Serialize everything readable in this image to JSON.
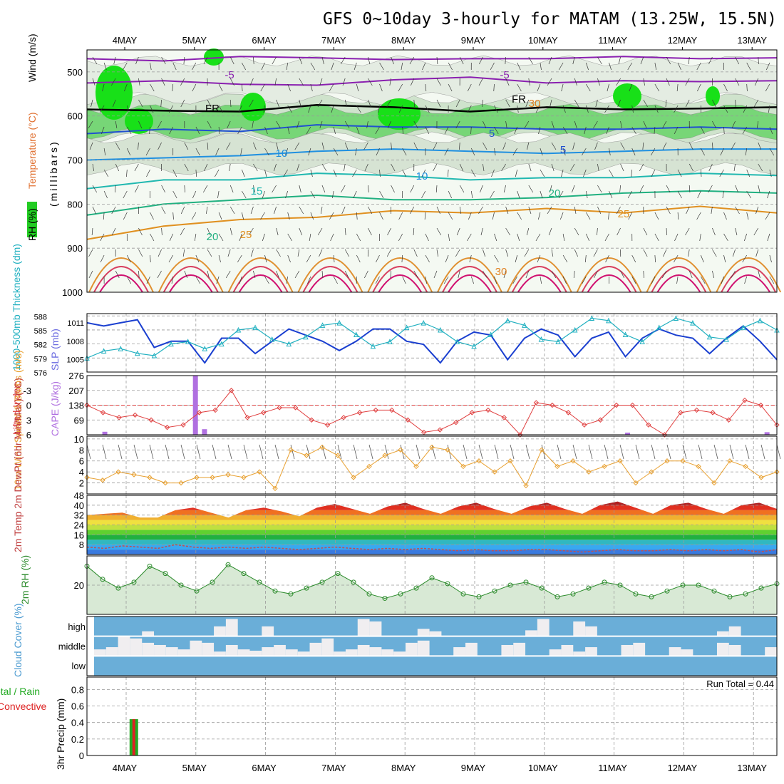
{
  "title": "GFS 0~10day 3-hourly for MATAM (13.25W, 15.5N)",
  "dates": [
    "4MAY",
    "5MAY",
    "6MAY",
    "7MAY",
    "8MAY",
    "9MAY",
    "10MAY",
    "11MAY",
    "12MAY",
    "13MAY"
  ],
  "run_total": "Run Total = 0.44",
  "colors": {
    "temp": "#d04040",
    "wind": "#000000",
    "rh_green": "#22cc22",
    "slp": "#1a3fd0",
    "thick": "#20b0c0",
    "li": "#e04040",
    "cape": "#b070e0",
    "wind10": "#e8a030",
    "rh2m": "#2a8a2a",
    "cloud": "#6aaed8",
    "precip_total": "#22aa22",
    "precip_conv": "#dd2222"
  },
  "chart_data": [
    {
      "type": "heatmap",
      "panel": "upper_air",
      "ylabel_parts": {
        "rh": "RH (%)",
        "temp": "Temperature (°C)",
        "wind": "Wind (m/s)",
        "pressure": "(millibars)"
      },
      "y_ticks": [
        "500",
        "600",
        "700",
        "800",
        "900",
        "1000"
      ],
      "ylim": [
        1000,
        450
      ],
      "contour_labels": [
        "-5",
        "-5",
        "FR",
        "FR",
        "5",
        "5",
        "10",
        "10",
        "15",
        "20",
        "20",
        "25",
        "25",
        "30",
        "30"
      ],
      "isotherms": [
        {
          "label": "-5",
          "p": [
            470,
            475,
            465,
            468,
            472,
            470,
            470,
            465,
            470,
            468
          ]
        },
        {
          "label": "-5",
          "p": [
            525,
            520,
            528,
            530,
            518,
            512,
            525,
            520,
            522,
            520
          ]
        },
        {
          "label": "FR",
          "p": [
            585,
            588,
            590,
            575,
            580,
            590,
            580,
            585,
            583,
            580
          ]
        },
        {
          "label": "5",
          "p": [
            640,
            630,
            635,
            620,
            625,
            625,
            630,
            630,
            625,
            630
          ]
        },
        {
          "label": "10",
          "p": [
            700,
            695,
            690,
            680,
            675,
            680,
            685,
            680,
            675,
            675
          ]
        },
        {
          "label": "15",
          "p": [
            765,
            745,
            745,
            730,
            735,
            745,
            740,
            740,
            730,
            735
          ]
        },
        {
          "label": "20",
          "p": [
            825,
            800,
            790,
            780,
            790,
            790,
            785,
            775,
            770,
            775
          ]
        },
        {
          "label": "25",
          "p": [
            880,
            850,
            835,
            830,
            815,
            820,
            810,
            820,
            805,
            820
          ]
        }
      ]
    },
    {
      "type": "line",
      "panel": "slp_thickness",
      "ylabel_left": "1000-500mb Thickness (dm)",
      "ylabel_right": "SLP (mb)",
      "y_ticks_left": [
        "576",
        "579",
        "582",
        "585",
        "588"
      ],
      "y_ticks_right": [
        "1005",
        "1008",
        "1011"
      ],
      "series": [
        {
          "name": "SLP (mb)",
          "values": [
            1011,
            1010.5,
            1011,
            1011.5,
            1007,
            1008,
            1008,
            1004.5,
            1008.5,
            1008.5,
            1006,
            1008,
            1010,
            1009,
            1008,
            1006.5,
            1008,
            1010,
            1010,
            1008,
            1007.5,
            1004.5,
            1008,
            1009.5,
            1009,
            1005,
            1008.5,
            1010,
            1009,
            1005.5,
            1008.5,
            1009.5,
            1005.5,
            1008.5,
            1010,
            1009,
            1008.5,
            1006,
            1008.5,
            1010.5,
            1008,
            1005
          ]
        },
        {
          "name": "1000-500mb Thickness (dm)",
          "values": [
            579,
            580.5,
            581,
            580,
            579.5,
            582,
            582.5,
            581,
            582,
            585,
            585.5,
            583,
            582,
            583.5,
            586,
            586.5,
            584,
            581.5,
            582.5,
            585.5,
            586.5,
            585,
            582.5,
            581.5,
            584,
            587,
            586,
            583,
            582.5,
            585,
            587.5,
            587,
            584,
            582.5,
            585.5,
            587.5,
            586.5,
            583.5,
            583,
            585.5,
            587,
            585
          ]
        }
      ]
    },
    {
      "type": "line",
      "panel": "li_cape",
      "ylabel_left": "Lifted Index",
      "ylabel_right": "CAPE (J/kg)",
      "y_ticks_left": [
        "-3",
        "0",
        "3",
        "6"
      ],
      "y_ticks_right": [
        "69",
        "138",
        "207",
        "276"
      ],
      "series": [
        {
          "name": "Lifted Index",
          "values": [
            0,
            1.5,
            2.5,
            2,
            3,
            4.5,
            4,
            1.5,
            1,
            -3,
            2.5,
            1.5,
            0.5,
            0.5,
            3,
            4,
            2.5,
            1.5,
            1,
            1,
            3,
            5.5,
            5,
            3.5,
            1.5,
            1,
            2.5,
            6,
            -0.5,
            0,
            1.5,
            4,
            3,
            0,
            0,
            4,
            6,
            1.5,
            1,
            1.5,
            3,
            -1,
            0,
            4
          ]
        },
        {
          "name": "CAPE (J/kg)",
          "bars": [
            {
              "x": 0.2,
              "v": 14
            },
            {
              "x": 1.5,
              "v": 276
            },
            {
              "x": 1.63,
              "v": 26
            },
            {
              "x": 7.7,
              "v": 10
            },
            {
              "x": 9.7,
              "v": 12
            }
          ]
        }
      ]
    },
    {
      "type": "line",
      "panel": "wind10m",
      "ylabel": "10m Wind Speed & Barbs (m/s)",
      "y_ticks": [
        "2",
        "4",
        "6",
        "8",
        "10"
      ],
      "ylim": [
        0,
        10
      ],
      "series": [
        {
          "name": "10m Wind Speed",
          "values": [
            3,
            2.5,
            4,
            3.5,
            3,
            2,
            2,
            3,
            3,
            3.5,
            3,
            4,
            1,
            8,
            7,
            8.5,
            7,
            3,
            5,
            7,
            8,
            5,
            8.5,
            8,
            5,
            6,
            4,
            6,
            1.5,
            8,
            5,
            6,
            4,
            5,
            6,
            2,
            4,
            6,
            6,
            5,
            2,
            6,
            5,
            3,
            4
          ]
        }
      ]
    },
    {
      "type": "area",
      "panel": "temp2m",
      "ylabel": "2m Temp 2m DewPt (6hr Min/Max) (°C)",
      "y_ticks": [
        "8",
        "16",
        "24",
        "32",
        "40",
        "48"
      ],
      "ylim": [
        0,
        48
      ],
      "series": [
        {
          "name": "2m Temp",
          "values": [
            32,
            33,
            34,
            30,
            30,
            36,
            38,
            34,
            30,
            36,
            38,
            35,
            31,
            38,
            41,
            37,
            33,
            39,
            42,
            37,
            33,
            39,
            42,
            37,
            33,
            39,
            42,
            37,
            33,
            40,
            43,
            38,
            33,
            40,
            42,
            37,
            33,
            40,
            42,
            37
          ]
        },
        {
          "name": "2m DewPt",
          "values": [
            6,
            5,
            7,
            6,
            5,
            8,
            6,
            5,
            6,
            5,
            6,
            5,
            4,
            5,
            6,
            5,
            4,
            5,
            4,
            5,
            4,
            3,
            4,
            3,
            3,
            4,
            4,
            3,
            2,
            3,
            4,
            3,
            3,
            4,
            3,
            4,
            3,
            4,
            2,
            4
          ]
        }
      ]
    },
    {
      "type": "area",
      "panel": "rh2m",
      "ylabel": "2m RH (%)",
      "y_ticks": [
        "20"
      ],
      "ylim": [
        0,
        40
      ],
      "series": [
        {
          "name": "2m RH",
          "values": [
            33,
            24,
            18,
            22,
            33,
            28,
            20,
            16,
            22,
            34,
            28,
            22,
            16,
            14,
            18,
            22,
            28,
            22,
            14,
            11,
            14,
            18,
            25,
            21,
            14,
            12,
            16,
            20,
            22,
            18,
            12,
            14,
            18,
            22,
            20,
            14,
            12,
            16,
            20,
            20,
            16,
            12,
            14,
            18,
            21
          ]
        }
      ]
    },
    {
      "type": "bar",
      "panel": "cloud",
      "ylabel": "Cloud Cover (%)",
      "y_ticks": [
        "high",
        "middle",
        "low"
      ],
      "series": [
        {
          "name": "high",
          "values": [
            0,
            0,
            0,
            0,
            10,
            0,
            0,
            0,
            0,
            0,
            20,
            35,
            0,
            0,
            20,
            0,
            0,
            0,
            0,
            0,
            0,
            0,
            35,
            30,
            0,
            0,
            0,
            15,
            10,
            0,
            0,
            0,
            0,
            0,
            0,
            0,
            12,
            35,
            0,
            0,
            30,
            20,
            0,
            0,
            0,
            0,
            0,
            0,
            0,
            0,
            0,
            0,
            10,
            20,
            0,
            0,
            0
          ]
        },
        {
          "name": "middle",
          "values": [
            15,
            20,
            45,
            40,
            30,
            25,
            20,
            15,
            35,
            30,
            10,
            25,
            15,
            12,
            20,
            25,
            15,
            10,
            30,
            40,
            10,
            15,
            25,
            20,
            15,
            10,
            30,
            35,
            0,
            0,
            20,
            30,
            0,
            0,
            25,
            30,
            0,
            0,
            15,
            25,
            10,
            20,
            0,
            0,
            25,
            30,
            0,
            0,
            20,
            15,
            0,
            0,
            30,
            25,
            0,
            0,
            20
          ]
        }
      ]
    },
    {
      "type": "bar",
      "panel": "precip",
      "ylabel_total": "Total / Rain",
      "ylabel_conv": "Convective",
      "ylabel": "3hr Precip (mm)",
      "y_ticks": [
        "0",
        "0.2",
        "0.4",
        "0.6",
        "0.8"
      ],
      "ylim": [
        0,
        0.95
      ],
      "series": [
        {
          "name": "Total / Rain",
          "bars": [
            {
              "x": 0.1,
              "v": 0.44
            }
          ]
        },
        {
          "name": "Convective",
          "bars": [
            {
              "x": 0.1,
              "v": 0.44
            }
          ]
        }
      ]
    }
  ]
}
